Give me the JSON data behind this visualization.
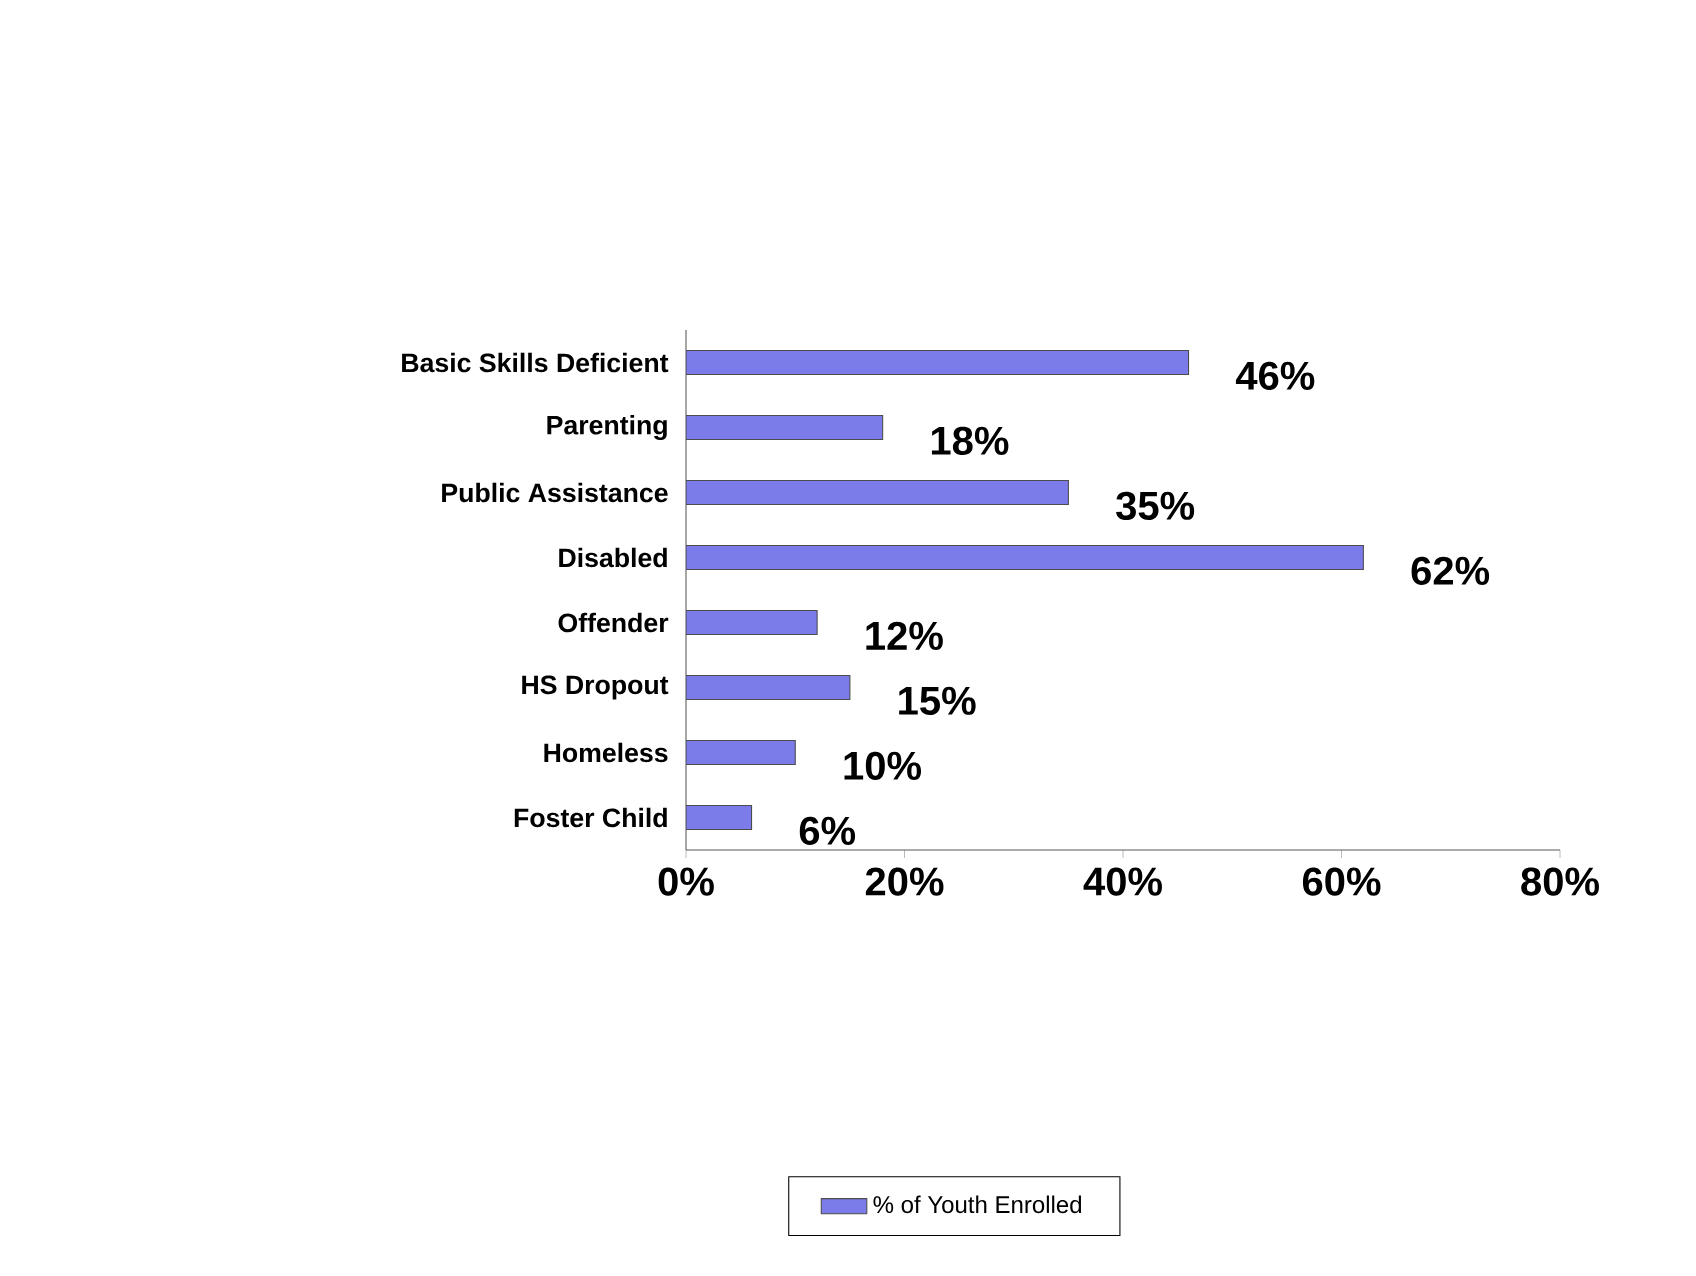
{
  "chart_data": {
    "type": "bar",
    "orientation": "horizontal",
    "categories": [
      "Basic Skills Deficient",
      "Parenting",
      "Public Assistance",
      "Disabled",
      "Offender",
      "HS Dropout",
      "Homeless",
      "Foster Child"
    ],
    "series": [
      {
        "name": "% of Youth Enrolled",
        "color": "#7b7bea",
        "values": [
          46,
          18,
          35,
          62,
          12,
          15,
          10,
          6
        ],
        "value_labels": [
          "46%",
          "18%",
          "35%",
          "62%",
          "12%",
          "15%",
          "10%",
          "6%"
        ]
      }
    ],
    "xlim": [
      0,
      80
    ],
    "xticks": [
      {
        "value": 0,
        "label": "0%"
      },
      {
        "value": 20,
        "label": "20%"
      },
      {
        "value": 40,
        "label": "40%"
      },
      {
        "value": 60,
        "label": "60%"
      },
      {
        "value": 80,
        "label": "80%"
      }
    ],
    "legend": "bottom",
    "grid": false
  }
}
